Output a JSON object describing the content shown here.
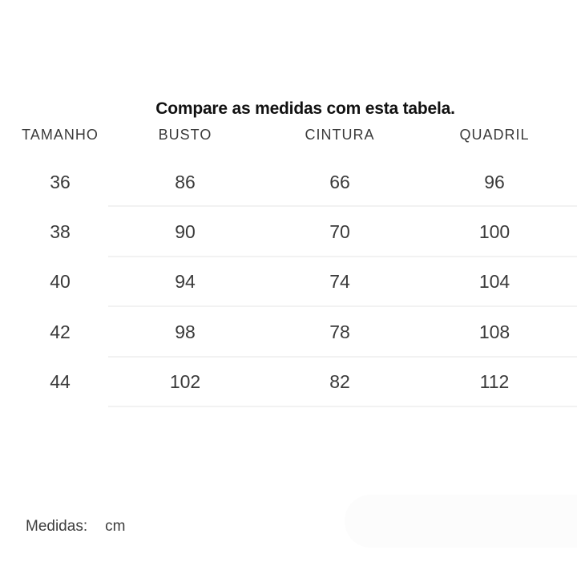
{
  "title": "Compare as medidas com esta tabela.",
  "table": {
    "columns": [
      "TAMANHO",
      "BUSTO",
      "CINTURA",
      "QUADRIL"
    ],
    "rows": [
      [
        "36",
        "86",
        "66",
        "96"
      ],
      [
        "38",
        "90",
        "70",
        "100"
      ],
      [
        "40",
        "94",
        "74",
        "104"
      ],
      [
        "42",
        "98",
        "78",
        "108"
      ],
      [
        "44",
        "102",
        "82",
        "112"
      ]
    ]
  },
  "footer": {
    "label": "Medidas:",
    "unit": "cm"
  },
  "colors": {
    "title_text": "#111111",
    "table_text": "#3a3a3a",
    "header_text": "#3b3b3b",
    "divider": "#f2f2f2",
    "pill_background": "#fcfcfc",
    "page_background": "#ffffff"
  }
}
